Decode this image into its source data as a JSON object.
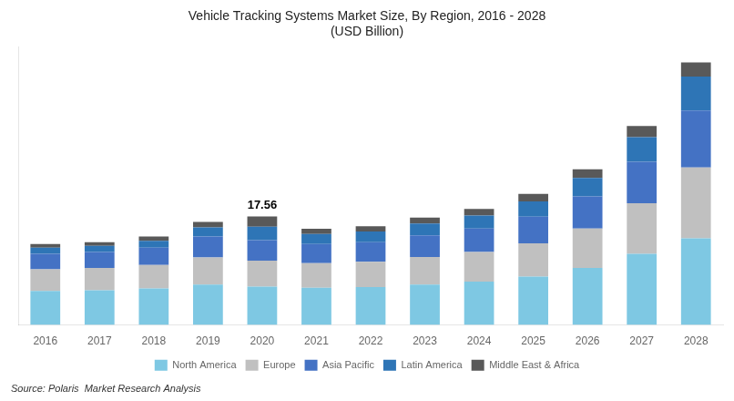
{
  "chart_data": {
    "type": "bar",
    "title": "Vehicle Tracking Systems Market Size, By Region, 2016 - 2028",
    "subtitle": "(USD Billion)",
    "source": "Source: Polaris  Market Research Analysis",
    "categories": [
      "2016",
      "2017",
      "2018",
      "2019",
      "2020",
      "2021",
      "2022",
      "2023",
      "2024",
      "2025",
      "2026",
      "2027",
      "2028"
    ],
    "series": [
      {
        "name": "North America",
        "color": "#7ec8e3",
        "values": [
          5.5,
          5.6,
          5.9,
          6.5,
          6.2,
          6.0,
          6.1,
          6.5,
          7.0,
          7.8,
          9.2,
          11.5,
          14.0
        ]
      },
      {
        "name": "Europe",
        "color": "#c0c0c0",
        "values": [
          3.5,
          3.6,
          3.8,
          4.4,
          4.2,
          4.0,
          4.1,
          4.5,
          4.8,
          5.4,
          6.4,
          8.2,
          11.5
        ]
      },
      {
        "name": "Asia Pacific",
        "color": "#4472c4",
        "values": [
          2.5,
          2.6,
          2.8,
          3.4,
          3.3,
          3.1,
          3.2,
          3.5,
          3.8,
          4.3,
          5.2,
          6.7,
          9.2
        ]
      },
      {
        "name": "Latin America",
        "color": "#2e75b6",
        "values": [
          1.0,
          1.0,
          1.1,
          1.5,
          2.2,
          1.6,
          1.7,
          1.9,
          2.1,
          2.5,
          3.0,
          4.0,
          5.5
        ]
      },
      {
        "name": "Middle East & Africa",
        "color": "#595959",
        "values": [
          0.6,
          0.6,
          0.7,
          0.86,
          1.66,
          0.86,
          0.86,
          0.96,
          1.06,
          1.2,
          1.4,
          1.8,
          2.3
        ]
      }
    ],
    "annotations": [
      {
        "text": "17.56",
        "x": "2020",
        "y": 17.56
      }
    ],
    "ylim": [
      0,
      45
    ],
    "stacked": true,
    "grid": false,
    "legend": "bottom",
    "tick_labels": "x"
  }
}
